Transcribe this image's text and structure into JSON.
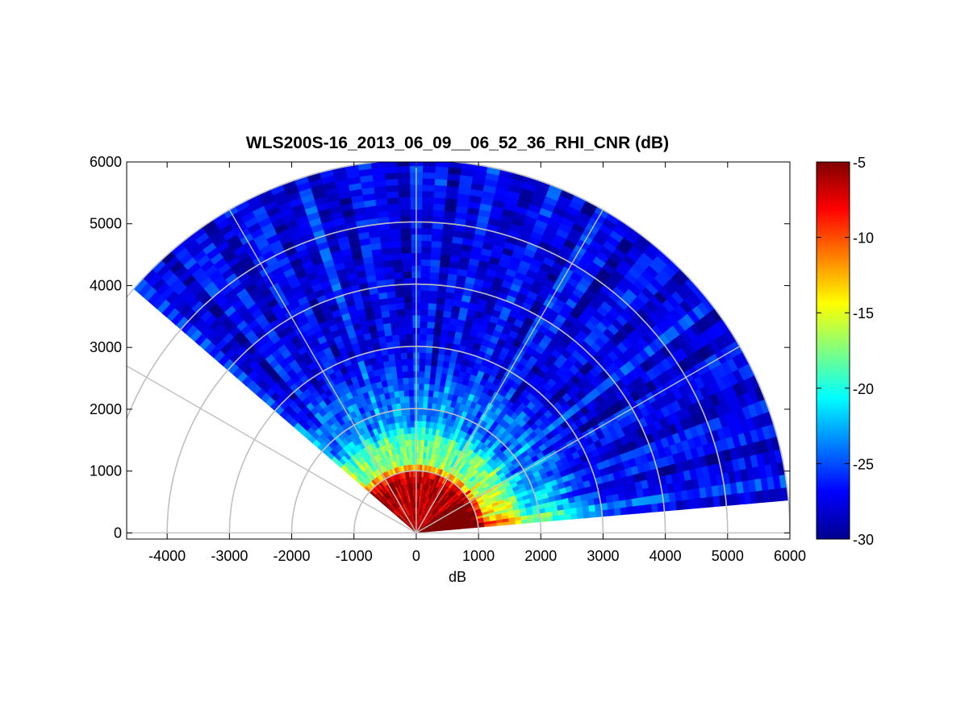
{
  "chart_data": {
    "type": "heatmap",
    "subtype": "polar-rhi-sector",
    "title": "WLS200S-16_2013_06_09__06_52_36_RHI_CNR (dB)",
    "xlabel": "dB",
    "ylabel": "",
    "xlim": [
      -4650,
      6000
    ],
    "ylim": [
      -100,
      6000
    ],
    "x_ticks": [
      "-4000",
      "-3000",
      "-2000",
      "-1000",
      "0",
      "1000",
      "2000",
      "3000",
      "4000",
      "5000",
      "6000"
    ],
    "y_ticks": [
      "0",
      "1000",
      "2000",
      "3000",
      "4000",
      "5000",
      "6000"
    ],
    "polar_grid": {
      "rings": [
        1000,
        2000,
        3000,
        4000,
        5000,
        6000
      ],
      "spokes_deg": [
        0,
        30,
        60,
        90,
        120,
        150,
        180
      ]
    },
    "scan": {
      "elevation_start_deg": 5,
      "elevation_end_deg": 139,
      "max_range": 6000,
      "range_gate": 100,
      "elevation_step_deg": 2
    },
    "colorbar": {
      "colormap": "jet",
      "min": -30,
      "max": -5,
      "ticks": [
        "-5",
        "-10",
        "-15",
        "-20",
        "-25",
        "-30"
      ]
    },
    "features": [
      {
        "name": "near-field high CNR",
        "range": [
          0,
          1100
        ],
        "value": -6
      },
      {
        "name": "aerosol layer",
        "range": [
          1100,
          1900
        ],
        "value": -17
      },
      {
        "name": "free troposphere background",
        "range": [
          2500,
          6000
        ],
        "value": -27
      }
    ]
  }
}
